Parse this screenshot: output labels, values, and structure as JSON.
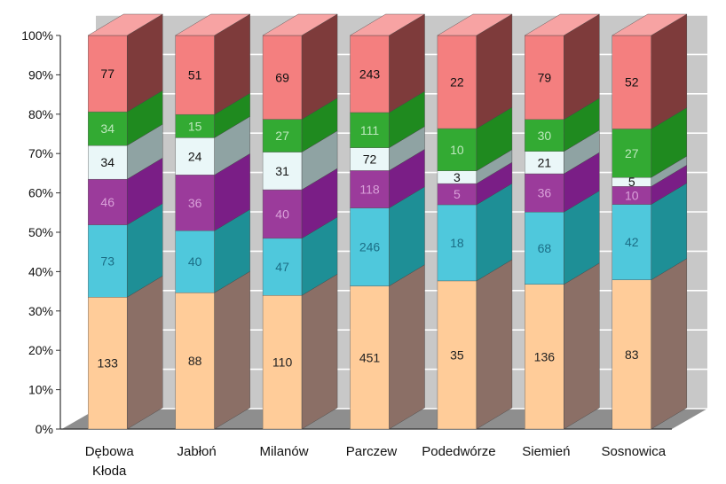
{
  "chart_data": {
    "type": "bar",
    "stacked": "percent",
    "style": "3d",
    "categories": [
      "Dębowa Kłoda",
      "Jabłoń",
      "Milanów",
      "Parczew",
      "Podedwórze",
      "Siemień",
      "Sosnowica"
    ],
    "category_lines": [
      [
        "Dębowa",
        "Kłoda"
      ],
      [
        "Jabłoń"
      ],
      [
        "Milanów"
      ],
      [
        "Parczew"
      ],
      [
        "Podedwórze"
      ],
      [
        "Siemień"
      ],
      [
        "Sosnowica"
      ]
    ],
    "series": [
      {
        "values": [
          133,
          88,
          110,
          451,
          35,
          136,
          83
        ],
        "color": "#FFCC99",
        "side": "#8B6F66",
        "top": "#FFE3C2",
        "label_color": "#222222"
      },
      {
        "values": [
          73,
          40,
          47,
          246,
          18,
          68,
          42
        ],
        "color": "#4FC8DC",
        "side": "#1E8F96",
        "top": "#7ADCE9",
        "label_color": "#1C6E86"
      },
      {
        "values": [
          46,
          36,
          40,
          118,
          5,
          36,
          10
        ],
        "color": "#9B3B9B",
        "side": "#7A1E86",
        "top": "#B866B8",
        "label_color": "#D9A0D9"
      },
      {
        "values": [
          34,
          24,
          31,
          72,
          3,
          21,
          5
        ],
        "color": "#EAF7F8",
        "side": "#8FA3A3",
        "top": "#F5FCFD",
        "label_color": "#111111"
      },
      {
        "values": [
          34,
          15,
          27,
          111,
          10,
          30,
          27
        ],
        "color": "#33AA33",
        "side": "#1F8A1F",
        "top": "#66C266",
        "label_color": "#BDE8BD"
      },
      {
        "values": [
          77,
          51,
          69,
          243,
          22,
          79,
          52
        ],
        "color": "#F47F7F",
        "side": "#7E3B3B",
        "top": "#F7A3A3",
        "label_color": "#111111"
      }
    ],
    "y_ticks": [
      "0%",
      "10%",
      "20%",
      "30%",
      "40%",
      "50%",
      "60%",
      "70%",
      "80%",
      "90%",
      "100%"
    ],
    "ylim": [
      0,
      100
    ],
    "grid": true,
    "colors": {
      "wall": "#C8C8C8",
      "floor": "#8E8E8E",
      "gridline": "#ffffff",
      "axis": "#333333"
    }
  }
}
